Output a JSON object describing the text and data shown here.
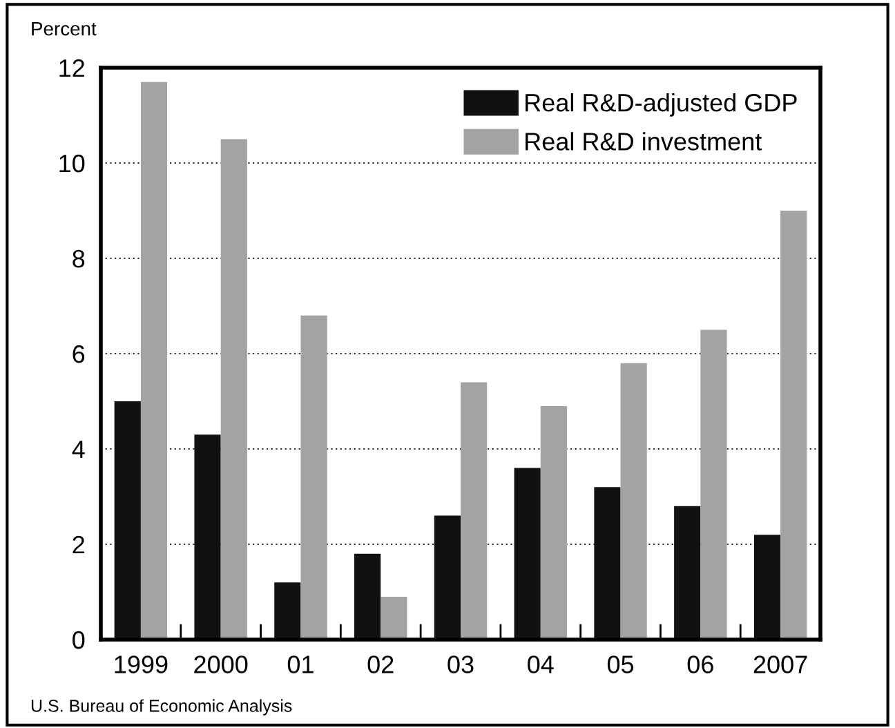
{
  "chart_data": {
    "type": "bar",
    "ylabel": "Percent",
    "categories": [
      "1999",
      "2000",
      "01",
      "02",
      "03",
      "04",
      "05",
      "06",
      "2007"
    ],
    "series": [
      {
        "name": "Real R&D-adjusted GDP",
        "color": "#111111",
        "values": [
          5.0,
          4.3,
          1.2,
          1.8,
          2.6,
          3.6,
          3.2,
          2.8,
          2.2
        ]
      },
      {
        "name": "Real R&D investment",
        "color": "#a3a3a3",
        "values": [
          11.7,
          10.5,
          6.8,
          0.9,
          5.4,
          4.9,
          5.8,
          6.5,
          9.0
        ]
      }
    ],
    "ylim": [
      0,
      12
    ],
    "yticks": [
      0,
      2,
      4,
      6,
      8,
      10,
      12
    ],
    "grid": "y",
    "legend": "top right",
    "annotations": [
      "U.S. Bureau of Economic Analysis"
    ]
  }
}
